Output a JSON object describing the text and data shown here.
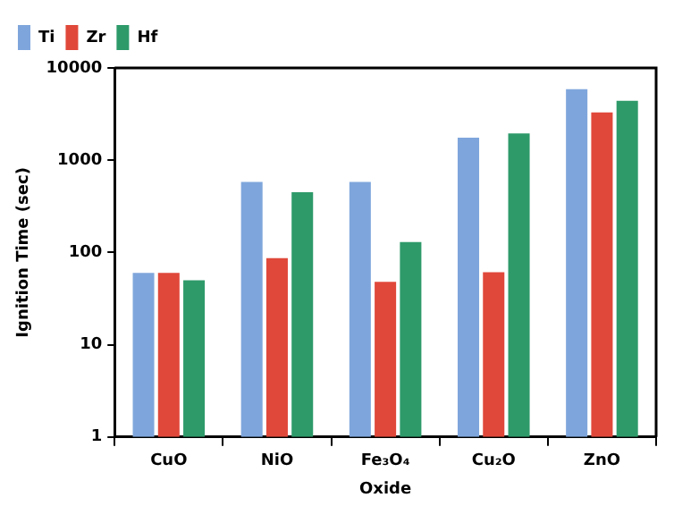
{
  "chart_data": {
    "type": "bar",
    "xlabel": "Oxide",
    "ylabel": "Ignition Time (sec)",
    "categories": [
      "CuO",
      "NiO",
      "Fe₃O₄",
      "Cu₂O",
      "ZnO"
    ],
    "series": [
      {
        "name": "Ti",
        "color": "#7fa6dc",
        "values": [
          60,
          580,
          580,
          1750,
          5900
        ]
      },
      {
        "name": "Zr",
        "color": "#e0483a",
        "values": [
          60,
          87,
          48,
          61,
          3300
        ]
      },
      {
        "name": "Hf",
        "color": "#2e9a6a",
        "values": [
          50,
          450,
          130,
          1950,
          4400
        ]
      }
    ],
    "log": true,
    "ylim": [
      1,
      10000
    ],
    "yticks": [
      1,
      10,
      100,
      1000,
      10000
    ],
    "grid": false,
    "legend": "top left"
  }
}
